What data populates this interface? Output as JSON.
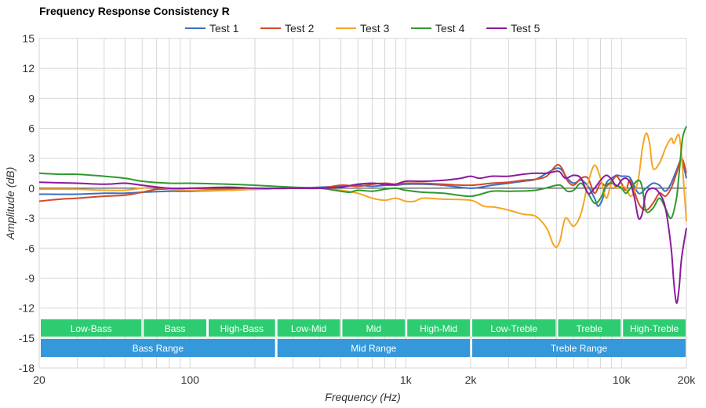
{
  "chart_data": {
    "type": "line",
    "title": "Frequency Response Consistency R",
    "xlabel": "Frequency (Hz)",
    "ylabel": "Amplitude (dB)",
    "x_scale": "log",
    "xlim": [
      20,
      20000
    ],
    "ylim": [
      -18,
      15
    ],
    "y_ticks": [
      15,
      12,
      9,
      6,
      3,
      0,
      -3,
      -6,
      -9,
      -12,
      -15,
      -18
    ],
    "x_tick_labels": [
      {
        "value": 20,
        "label": "20"
      },
      {
        "value": 100,
        "label": "100"
      },
      {
        "value": 1000,
        "label": "1k"
      },
      {
        "value": 2000,
        "label": "2k"
      },
      {
        "value": 10000,
        "label": "10k"
      },
      {
        "value": 20000,
        "label": "20k"
      }
    ],
    "grid": true,
    "legend_position": "top-center",
    "range_bands": [
      {
        "label": "Low-Bass",
        "from": 20,
        "to": 60
      },
      {
        "label": "Bass",
        "from": 60,
        "to": 120
      },
      {
        "label": "High-Bass",
        "from": 120,
        "to": 250
      },
      {
        "label": "Low-Mid",
        "from": 250,
        "to": 500
      },
      {
        "label": "Mid",
        "from": 500,
        "to": 1000
      },
      {
        "label": "High-Mid",
        "from": 1000,
        "to": 2000
      },
      {
        "label": "Low-Treble",
        "from": 2000,
        "to": 5000
      },
      {
        "label": "Treble",
        "from": 5000,
        "to": 10000
      },
      {
        "label": "High-Treble",
        "from": 10000,
        "to": 20000
      }
    ],
    "range_groups": [
      {
        "label": "Bass Range",
        "from": 20,
        "to": 250
      },
      {
        "label": "Mid Range",
        "from": 250,
        "to": 2000
      },
      {
        "label": "Treble Range",
        "from": 2000,
        "to": 20000
      }
    ],
    "band_color": "#2ecc71",
    "group_color": "#3498db",
    "series": [
      {
        "name": "Test 1",
        "color": "#3a6fc4",
        "points": [
          [
            20,
            -0.6
          ],
          [
            30,
            -0.6
          ],
          [
            40,
            -0.5
          ],
          [
            50,
            -0.5
          ],
          [
            60,
            -0.4
          ],
          [
            80,
            -0.3
          ],
          [
            100,
            -0.3
          ],
          [
            150,
            -0.2
          ],
          [
            200,
            -0.1
          ],
          [
            300,
            0.0
          ],
          [
            400,
            0.1
          ],
          [
            500,
            0.2
          ],
          [
            600,
            0.3
          ],
          [
            700,
            0.2
          ],
          [
            800,
            0.3
          ],
          [
            900,
            0.3
          ],
          [
            1000,
            0.4
          ],
          [
            1200,
            0.4
          ],
          [
            1500,
            0.3
          ],
          [
            2000,
            0.0
          ],
          [
            2500,
            0.3
          ],
          [
            3000,
            0.5
          ],
          [
            3500,
            0.7
          ],
          [
            4000,
            0.9
          ],
          [
            4500,
            1.5
          ],
          [
            5000,
            2.0
          ],
          [
            5300,
            1.8
          ],
          [
            5600,
            1.0
          ],
          [
            6000,
            0.5
          ],
          [
            6500,
            0.8
          ],
          [
            7000,
            0.2
          ],
          [
            7500,
            -1.0
          ],
          [
            7800,
            -1.8
          ],
          [
            8200,
            -1.0
          ],
          [
            8500,
            0.5
          ],
          [
            9000,
            1.0
          ],
          [
            9500,
            1.3
          ],
          [
            10000,
            1.2
          ],
          [
            10500,
            1.2
          ],
          [
            11000,
            1.0
          ],
          [
            12000,
            -0.5
          ],
          [
            13000,
            0.0
          ],
          [
            14000,
            0.5
          ],
          [
            15000,
            0.3
          ],
          [
            16000,
            -0.3
          ],
          [
            17000,
            0.5
          ],
          [
            18000,
            1.8
          ],
          [
            19000,
            2.8
          ],
          [
            20000,
            1.0
          ]
        ]
      },
      {
        "name": "Test 2",
        "color": "#d04a2a",
        "points": [
          [
            20,
            -1.3
          ],
          [
            25,
            -1.1
          ],
          [
            30,
            -1.0
          ],
          [
            40,
            -0.8
          ],
          [
            50,
            -0.7
          ],
          [
            60,
            -0.4
          ],
          [
            70,
            -0.1
          ],
          [
            80,
            -0.1
          ],
          [
            100,
            0.0
          ],
          [
            130,
            -0.1
          ],
          [
            150,
            -0.1
          ],
          [
            200,
            -0.1
          ],
          [
            300,
            0.0
          ],
          [
            400,
            0.0
          ],
          [
            500,
            0.3
          ],
          [
            600,
            0.2
          ],
          [
            700,
            0.4
          ],
          [
            800,
            0.5
          ],
          [
            900,
            0.4
          ],
          [
            1000,
            0.5
          ],
          [
            1200,
            0.5
          ],
          [
            1500,
            0.4
          ],
          [
            2000,
            0.3
          ],
          [
            2500,
            0.5
          ],
          [
            3000,
            0.6
          ],
          [
            3500,
            0.8
          ],
          [
            4000,
            0.9
          ],
          [
            4500,
            1.2
          ],
          [
            5000,
            2.3
          ],
          [
            5300,
            2.0
          ],
          [
            5600,
            0.8
          ],
          [
            6000,
            0.3
          ],
          [
            6500,
            1.0
          ],
          [
            7000,
            1.0
          ],
          [
            7500,
            -0.5
          ],
          [
            8000,
            0.5
          ],
          [
            8500,
            0.2
          ],
          [
            9000,
            0.7
          ],
          [
            9500,
            1.2
          ],
          [
            10000,
            0.5
          ],
          [
            10500,
            -0.2
          ],
          [
            11000,
            0.8
          ],
          [
            12000,
            -1.5
          ],
          [
            13000,
            -2.2
          ],
          [
            14000,
            -1.5
          ],
          [
            15000,
            -0.5
          ],
          [
            16000,
            -0.8
          ],
          [
            17000,
            0.0
          ],
          [
            18000,
            1.5
          ],
          [
            19000,
            3.0
          ],
          [
            20000,
            1.5
          ]
        ]
      },
      {
        "name": "Test 3",
        "color": "#f5a623",
        "points": [
          [
            20,
            -0.1
          ],
          [
            30,
            -0.1
          ],
          [
            40,
            -0.2
          ],
          [
            50,
            -0.2
          ],
          [
            60,
            0.0
          ],
          [
            70,
            0.1
          ],
          [
            80,
            -0.1
          ],
          [
            100,
            -0.2
          ],
          [
            150,
            -0.2
          ],
          [
            200,
            -0.1
          ],
          [
            300,
            0.0
          ],
          [
            400,
            0.0
          ],
          [
            500,
            -0.2
          ],
          [
            600,
            -0.5
          ],
          [
            700,
            -1.0
          ],
          [
            800,
            -1.2
          ],
          [
            900,
            -1.0
          ],
          [
            1000,
            -1.3
          ],
          [
            1100,
            -1.3
          ],
          [
            1200,
            -1.0
          ],
          [
            1500,
            -1.1
          ],
          [
            2000,
            -1.2
          ],
          [
            2300,
            -1.8
          ],
          [
            2600,
            -1.9
          ],
          [
            3000,
            -2.2
          ],
          [
            3500,
            -2.6
          ],
          [
            4000,
            -2.8
          ],
          [
            4500,
            -4.0
          ],
          [
            4800,
            -5.5
          ],
          [
            5000,
            -5.9
          ],
          [
            5200,
            -5.2
          ],
          [
            5500,
            -3.0
          ],
          [
            6000,
            -3.8
          ],
          [
            6500,
            -2.5
          ],
          [
            7000,
            0.5
          ],
          [
            7500,
            2.3
          ],
          [
            8000,
            1.0
          ],
          [
            8500,
            -1.0
          ],
          [
            9000,
            0.5
          ],
          [
            9500,
            0.0
          ],
          [
            10000,
            0.2
          ],
          [
            10500,
            0.0
          ],
          [
            11000,
            -0.8
          ],
          [
            11500,
            -0.3
          ],
          [
            12000,
            1.0
          ],
          [
            12500,
            4.0
          ],
          [
            13000,
            5.5
          ],
          [
            13500,
            4.5
          ],
          [
            14000,
            2.0
          ],
          [
            15000,
            2.5
          ],
          [
            16000,
            4.0
          ],
          [
            17000,
            5.0
          ],
          [
            17500,
            4.5
          ],
          [
            18500,
            5.3
          ],
          [
            19200,
            2.0
          ],
          [
            20000,
            -3.3
          ]
        ]
      },
      {
        "name": "Test 4",
        "color": "#2e9a2e",
        "points": [
          [
            20,
            1.5
          ],
          [
            25,
            1.4
          ],
          [
            30,
            1.4
          ],
          [
            40,
            1.2
          ],
          [
            50,
            1.0
          ],
          [
            60,
            0.7
          ],
          [
            80,
            0.5
          ],
          [
            100,
            0.5
          ],
          [
            150,
            0.4
          ],
          [
            200,
            0.3
          ],
          [
            300,
            0.1
          ],
          [
            400,
            0.0
          ],
          [
            500,
            -0.3
          ],
          [
            550,
            -0.4
          ],
          [
            600,
            -0.2
          ],
          [
            700,
            -0.3
          ],
          [
            800,
            -0.1
          ],
          [
            900,
            0.0
          ],
          [
            1000,
            -0.2
          ],
          [
            1200,
            -0.4
          ],
          [
            1500,
            -0.5
          ],
          [
            2000,
            -0.8
          ],
          [
            2500,
            -0.3
          ],
          [
            3000,
            -0.3
          ],
          [
            4000,
            -0.2
          ],
          [
            5000,
            0.3
          ],
          [
            5300,
            0.2
          ],
          [
            5600,
            -0.3
          ],
          [
            6000,
            -0.2
          ],
          [
            6500,
            0.5
          ],
          [
            7000,
            -0.5
          ],
          [
            7500,
            -1.5
          ],
          [
            8000,
            -1.0
          ],
          [
            8500,
            0.3
          ],
          [
            9000,
            0.5
          ],
          [
            9500,
            0.3
          ],
          [
            10000,
            0.0
          ],
          [
            10500,
            -0.5
          ],
          [
            11000,
            0.0
          ],
          [
            12000,
            0.8
          ],
          [
            12500,
            0.0
          ],
          [
            13000,
            -2.3
          ],
          [
            14000,
            -2.0
          ],
          [
            15000,
            -1.0
          ],
          [
            16000,
            -2.0
          ],
          [
            17000,
            -3.0
          ],
          [
            18000,
            -1.0
          ],
          [
            18500,
            1.5
          ],
          [
            19200,
            5.0
          ],
          [
            20000,
            6.2
          ]
        ]
      },
      {
        "name": "Test 5",
        "color": "#8c1a9e",
        "points": [
          [
            20,
            0.6
          ],
          [
            30,
            0.5
          ],
          [
            40,
            0.4
          ],
          [
            50,
            0.5
          ],
          [
            60,
            0.3
          ],
          [
            80,
            0.0
          ],
          [
            100,
            0.0
          ],
          [
            150,
            0.1
          ],
          [
            200,
            0.0
          ],
          [
            300,
            0.0
          ],
          [
            400,
            0.0
          ],
          [
            500,
            0.1
          ],
          [
            600,
            0.4
          ],
          [
            700,
            0.5
          ],
          [
            800,
            0.4
          ],
          [
            900,
            0.4
          ],
          [
            1000,
            0.7
          ],
          [
            1200,
            0.7
          ],
          [
            1500,
            0.8
          ],
          [
            1800,
            1.0
          ],
          [
            2000,
            1.2
          ],
          [
            2200,
            1.0
          ],
          [
            2500,
            1.2
          ],
          [
            3000,
            1.2
          ],
          [
            3500,
            1.4
          ],
          [
            4000,
            1.5
          ],
          [
            4500,
            1.5
          ],
          [
            5000,
            1.7
          ],
          [
            5200,
            1.6
          ],
          [
            5500,
            1.0
          ],
          [
            6000,
            1.3
          ],
          [
            6500,
            1.0
          ],
          [
            7000,
            -0.5
          ],
          [
            7500,
            0.0
          ],
          [
            8000,
            0.8
          ],
          [
            8500,
            1.3
          ],
          [
            9000,
            0.9
          ],
          [
            9500,
            0.2
          ],
          [
            10000,
            0.8
          ],
          [
            10500,
            1.0
          ],
          [
            11000,
            0.5
          ],
          [
            11500,
            -1.0
          ],
          [
            12000,
            -3.0
          ],
          [
            12500,
            -2.5
          ],
          [
            13000,
            -0.5
          ],
          [
            14000,
            0.0
          ],
          [
            15000,
            -0.5
          ],
          [
            16000,
            -2.0
          ],
          [
            17000,
            -6.0
          ],
          [
            17500,
            -9.5
          ],
          [
            18000,
            -11.5
          ],
          [
            18500,
            -10.0
          ],
          [
            19000,
            -7.0
          ],
          [
            20000,
            -4.0
          ]
        ]
      }
    ]
  }
}
